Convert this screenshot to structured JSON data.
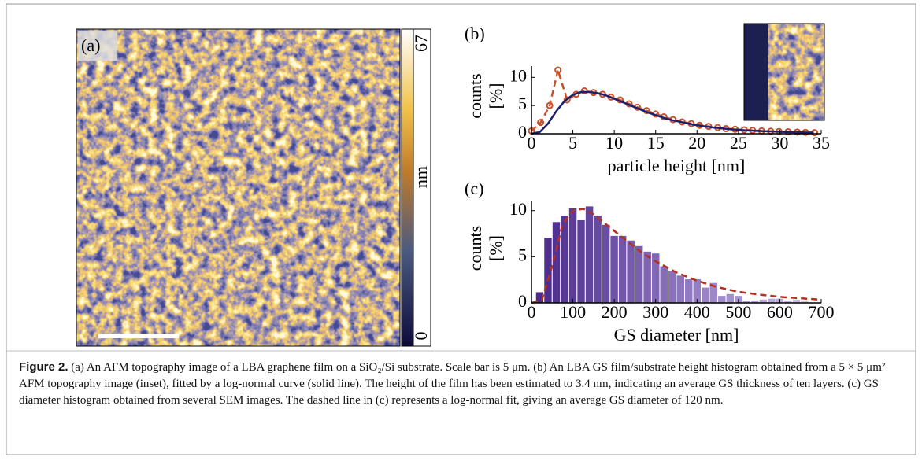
{
  "panel_a": {
    "label": "(a)",
    "colorbar": {
      "min": 0,
      "max": 67,
      "label": "nm"
    }
  },
  "chart_data": [
    {
      "type": "line",
      "panel_label": "(b)",
      "xlabel": "particle height [nm]",
      "ylabel": [
        "counts",
        "[%]"
      ],
      "xlim": [
        0,
        35
      ],
      "ylim": [
        0,
        12
      ],
      "xticks": [
        0,
        5,
        10,
        15,
        20,
        25,
        30,
        35
      ],
      "yticks": [
        0,
        5,
        10
      ],
      "series": [
        {
          "color": "#c8502a",
          "linestyle": "dashed",
          "marker": "circle",
          "x": [
            0,
            1.1,
            2.2,
            3.2,
            4.3,
            5.4,
            6.4,
            7.5,
            8.6,
            9.6,
            10.7,
            11.8,
            12.8,
            13.9,
            15,
            16,
            17.1,
            18.2,
            19.3,
            20.3,
            21.4,
            22.5,
            23.5,
            24.6,
            25.7,
            26.7,
            27.8,
            28.9,
            29.9,
            31,
            32.1,
            33.1,
            34.2
          ],
          "values": [
            0.5,
            2,
            5,
            11.3,
            6,
            7,
            7.6,
            7.3,
            7,
            6.5,
            6,
            5.3,
            4.7,
            4.1,
            3.5,
            3,
            2.5,
            2.1,
            1.8,
            1.5,
            1.3,
            1.1,
            0.9,
            0.8,
            0.7,
            0.6,
            0.5,
            0.45,
            0.4,
            0.35,
            0.3,
            0.25,
            0.2
          ]
        },
        {
          "color": "#1c1f6e",
          "linestyle": "solid",
          "x": [
            0,
            1,
            2,
            3,
            4,
            5,
            6,
            7,
            8,
            9,
            10,
            11,
            12,
            13,
            14,
            15,
            16,
            17,
            18,
            19,
            20,
            22,
            24,
            26,
            28,
            30,
            32,
            34
          ],
          "values": [
            0,
            0.3,
            1.8,
            4,
            5.8,
            6.9,
            7.4,
            7.4,
            7.2,
            6.8,
            6.2,
            5.6,
            5,
            4.4,
            3.8,
            3.3,
            2.8,
            2.4,
            2.1,
            1.8,
            1.5,
            1.1,
            0.8,
            0.6,
            0.45,
            0.35,
            0.25,
            0.2
          ]
        }
      ]
    },
    {
      "type": "histogram",
      "panel_label": "(c)",
      "xlabel": "GS diameter [nm]",
      "ylabel": [
        "counts",
        "[%]"
      ],
      "xlim": [
        0,
        700
      ],
      "ylim": [
        0,
        11
      ],
      "xticks": [
        0,
        100,
        200,
        300,
        400,
        500,
        600,
        700
      ],
      "yticks": [
        0,
        5,
        10
      ],
      "color_start": "#4a2a8c",
      "color_end": "#c9b8e8",
      "bins": [
        10,
        30,
        50,
        70,
        90,
        110,
        130,
        150,
        170,
        190,
        210,
        230,
        250,
        270,
        290,
        310,
        330,
        350,
        370,
        390,
        410,
        430,
        450,
        470,
        490,
        510,
        530,
        550,
        570,
        590,
        610,
        630,
        650,
        670
      ],
      "values": [
        1.2,
        7.1,
        8.8,
        9.5,
        10.3,
        9,
        10.5,
        9.5,
        8.5,
        7.3,
        7.3,
        6.8,
        6.2,
        5.6,
        5.4,
        4,
        3.5,
        3,
        2.6,
        2.6,
        1.7,
        2.2,
        0.8,
        1,
        0.8,
        0.3,
        0.3,
        0.4,
        0.5,
        0.5,
        0.3,
        0.4,
        0.2
      ],
      "fit": {
        "color": "#b5301f",
        "linestyle": "dashed",
        "x": [
          0,
          25,
          50,
          75,
          100,
          125,
          150,
          175,
          200,
          225,
          250,
          275,
          300,
          350,
          400,
          450,
          500,
          550,
          600,
          650,
          700
        ],
        "values": [
          0,
          0.3,
          4,
          8.5,
          10,
          10.2,
          9.6,
          8.7,
          7.8,
          6.9,
          6,
          5.2,
          4.5,
          3.3,
          2.4,
          1.7,
          1.2,
          0.9,
          0.65,
          0.5,
          0.35
        ]
      }
    }
  ],
  "caption": {
    "label": "Figure 2.",
    "text": "(a) An AFM topography image of a LBA graphene film on a SiO₂/Si substrate. Scale bar is 5 μm. (b) An LBA GS film/substrate height histogram obtained from a 5 × 5 μm² AFM topography image (inset), fitted by a log-normal curve (solid line). The height of the film has been estimated to 3.4 nm, indicating an average GS thickness of ten layers. (c) GS diameter histogram obtained from several SEM images. The dashed line in (c) represents a log-normal fit, giving an average GS diameter of 120 nm."
  }
}
